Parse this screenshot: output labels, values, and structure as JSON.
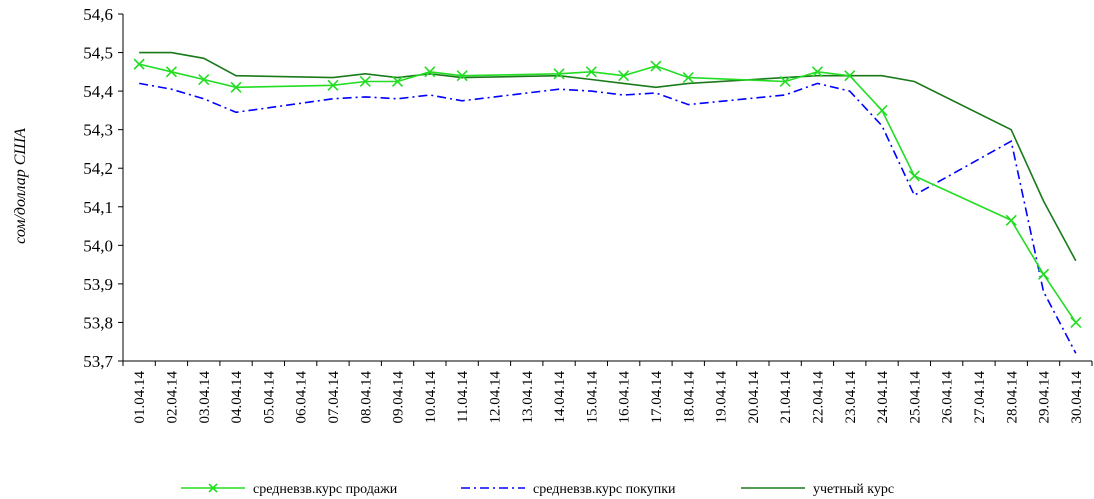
{
  "chart_data": {
    "type": "line",
    "ylabel": "сом/доллар США",
    "xlabel": "",
    "ylim": [
      53.7,
      54.6
    ],
    "ytick_labels": [
      "53,7",
      "53,8",
      "53,9",
      "54,0",
      "54,1",
      "54,2",
      "54,3",
      "54,4",
      "54,5",
      "54,6"
    ],
    "categories": [
      "01.04.14",
      "02.04.14",
      "03.04.14",
      "04.04.14",
      "05.04.14",
      "06.04.14",
      "07.04.14",
      "08.04.14",
      "09.04.14",
      "10.04.14",
      "11.04.14",
      "12.04.14",
      "13.04.14",
      "14.04.14",
      "15.04.14",
      "16.04.14",
      "17.04.14",
      "18.04.14",
      "19.04.14",
      "20.04.14",
      "21.04.14",
      "22.04.14",
      "23.04.14",
      "24.04.14",
      "25.04.14",
      "26.04.14",
      "27.04.14",
      "28.04.14",
      "29.04.14",
      "30.04.14"
    ],
    "grid": false,
    "legend_position": "bottom",
    "series": [
      {
        "name": "средневзв.курс продажи",
        "color": "#22dd22",
        "style": "solid-x-markers",
        "points": [
          {
            "x": "01.04.14",
            "y": 54.47
          },
          {
            "x": "02.04.14",
            "y": 54.45
          },
          {
            "x": "03.04.14",
            "y": 54.43
          },
          {
            "x": "04.04.14",
            "y": 54.41
          },
          {
            "x": "07.04.14",
            "y": 54.415
          },
          {
            "x": "08.04.14",
            "y": 54.425
          },
          {
            "x": "09.04.14",
            "y": 54.425
          },
          {
            "x": "10.04.14",
            "y": 54.45
          },
          {
            "x": "11.04.14",
            "y": 54.44
          },
          {
            "x": "14.04.14",
            "y": 54.445
          },
          {
            "x": "15.04.14",
            "y": 54.45
          },
          {
            "x": "16.04.14",
            "y": 54.44
          },
          {
            "x": "17.04.14",
            "y": 54.465
          },
          {
            "x": "18.04.14",
            "y": 54.435
          },
          {
            "x": "21.04.14",
            "y": 54.425
          },
          {
            "x": "22.04.14",
            "y": 54.45
          },
          {
            "x": "23.04.14",
            "y": 54.44
          },
          {
            "x": "24.04.14",
            "y": 54.35
          },
          {
            "x": "25.04.14",
            "y": 54.18
          },
          {
            "x": "28.04.14",
            "y": 54.065
          },
          {
            "x": "29.04.14",
            "y": 53.925
          },
          {
            "x": "30.04.14",
            "y": 53.8
          }
        ]
      },
      {
        "name": "средневзв.курс покупки",
        "color": "#0000ff",
        "style": "dash-dot",
        "points": [
          {
            "x": "01.04.14",
            "y": 54.42
          },
          {
            "x": "02.04.14",
            "y": 54.405
          },
          {
            "x": "03.04.14",
            "y": 54.38
          },
          {
            "x": "04.04.14",
            "y": 54.345
          },
          {
            "x": "07.04.14",
            "y": 54.38
          },
          {
            "x": "08.04.14",
            "y": 54.385
          },
          {
            "x": "09.04.14",
            "y": 54.38
          },
          {
            "x": "10.04.14",
            "y": 54.39
          },
          {
            "x": "11.04.14",
            "y": 54.375
          },
          {
            "x": "14.04.14",
            "y": 54.405
          },
          {
            "x": "15.04.14",
            "y": 54.4
          },
          {
            "x": "16.04.14",
            "y": 54.39
          },
          {
            "x": "17.04.14",
            "y": 54.395
          },
          {
            "x": "18.04.14",
            "y": 54.365
          },
          {
            "x": "21.04.14",
            "y": 54.39
          },
          {
            "x": "22.04.14",
            "y": 54.42
          },
          {
            "x": "23.04.14",
            "y": 54.4
          },
          {
            "x": "24.04.14",
            "y": 54.31
          },
          {
            "x": "25.04.14",
            "y": 54.13
          },
          {
            "x": "28.04.14",
            "y": 54.27
          },
          {
            "x": "29.04.14",
            "y": 53.88
          },
          {
            "x": "30.04.14",
            "y": 53.72
          }
        ]
      },
      {
        "name": "учетный курс",
        "color": "#1a7a1a",
        "style": "solid",
        "points": [
          {
            "x": "01.04.14",
            "y": 54.5
          },
          {
            "x": "02.04.14",
            "y": 54.5
          },
          {
            "x": "03.04.14",
            "y": 54.485
          },
          {
            "x": "04.04.14",
            "y": 54.44
          },
          {
            "x": "07.04.14",
            "y": 54.435
          },
          {
            "x": "08.04.14",
            "y": 54.445
          },
          {
            "x": "09.04.14",
            "y": 54.435
          },
          {
            "x": "10.04.14",
            "y": 54.445
          },
          {
            "x": "11.04.14",
            "y": 54.435
          },
          {
            "x": "14.04.14",
            "y": 54.44
          },
          {
            "x": "15.04.14",
            "y": 54.43
          },
          {
            "x": "16.04.14",
            "y": 54.42
          },
          {
            "x": "17.04.14",
            "y": 54.41
          },
          {
            "x": "18.04.14",
            "y": 54.42
          },
          {
            "x": "21.04.14",
            "y": 54.435
          },
          {
            "x": "22.04.14",
            "y": 54.44
          },
          {
            "x": "23.04.14",
            "y": 54.44
          },
          {
            "x": "24.04.14",
            "y": 54.44
          },
          {
            "x": "25.04.14",
            "y": 54.425
          },
          {
            "x": "28.04.14",
            "y": 54.3
          },
          {
            "x": "29.04.14",
            "y": 54.115
          },
          {
            "x": "30.04.14",
            "y": 53.96
          }
        ]
      }
    ]
  }
}
